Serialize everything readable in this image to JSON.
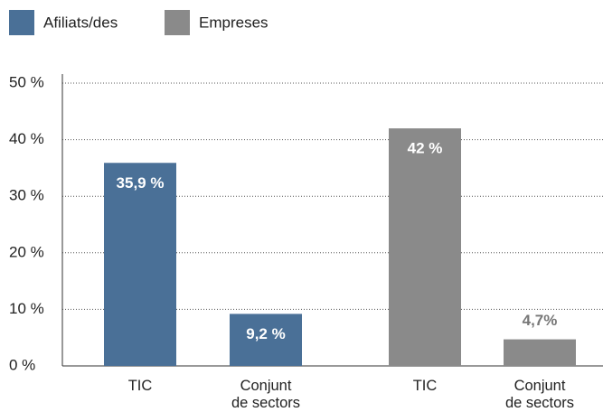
{
  "chart_data": {
    "type": "bar",
    "categories": [
      "TIC",
      "Conjunt de sectors",
      "TIC",
      "Conjunt de sectors"
    ],
    "series": [
      {
        "name": "Afiliats/des",
        "color": "#4a7097",
        "values": [
          35.9,
          9.2,
          null,
          null
        ],
        "value_labels": [
          "35,9 %",
          "9,2 %",
          null,
          null
        ]
      },
      {
        "name": "Empreses",
        "color": "#8a8a8a",
        "values": [
          null,
          null,
          42,
          4.7
        ],
        "value_labels": [
          null,
          null,
          "42 %",
          "4,7%"
        ]
      }
    ],
    "ylim": [
      0,
      50
    ],
    "yticks": [
      {
        "value": 0,
        "label": "0 %"
      },
      {
        "value": 10,
        "label": "10 %"
      },
      {
        "value": 20,
        "label": "20 %"
      },
      {
        "value": 30,
        "label": "30 %"
      },
      {
        "value": 40,
        "label": "40 %"
      },
      {
        "value": 50,
        "label": "50 %"
      }
    ],
    "grid": true,
    "legend": "top-left"
  }
}
